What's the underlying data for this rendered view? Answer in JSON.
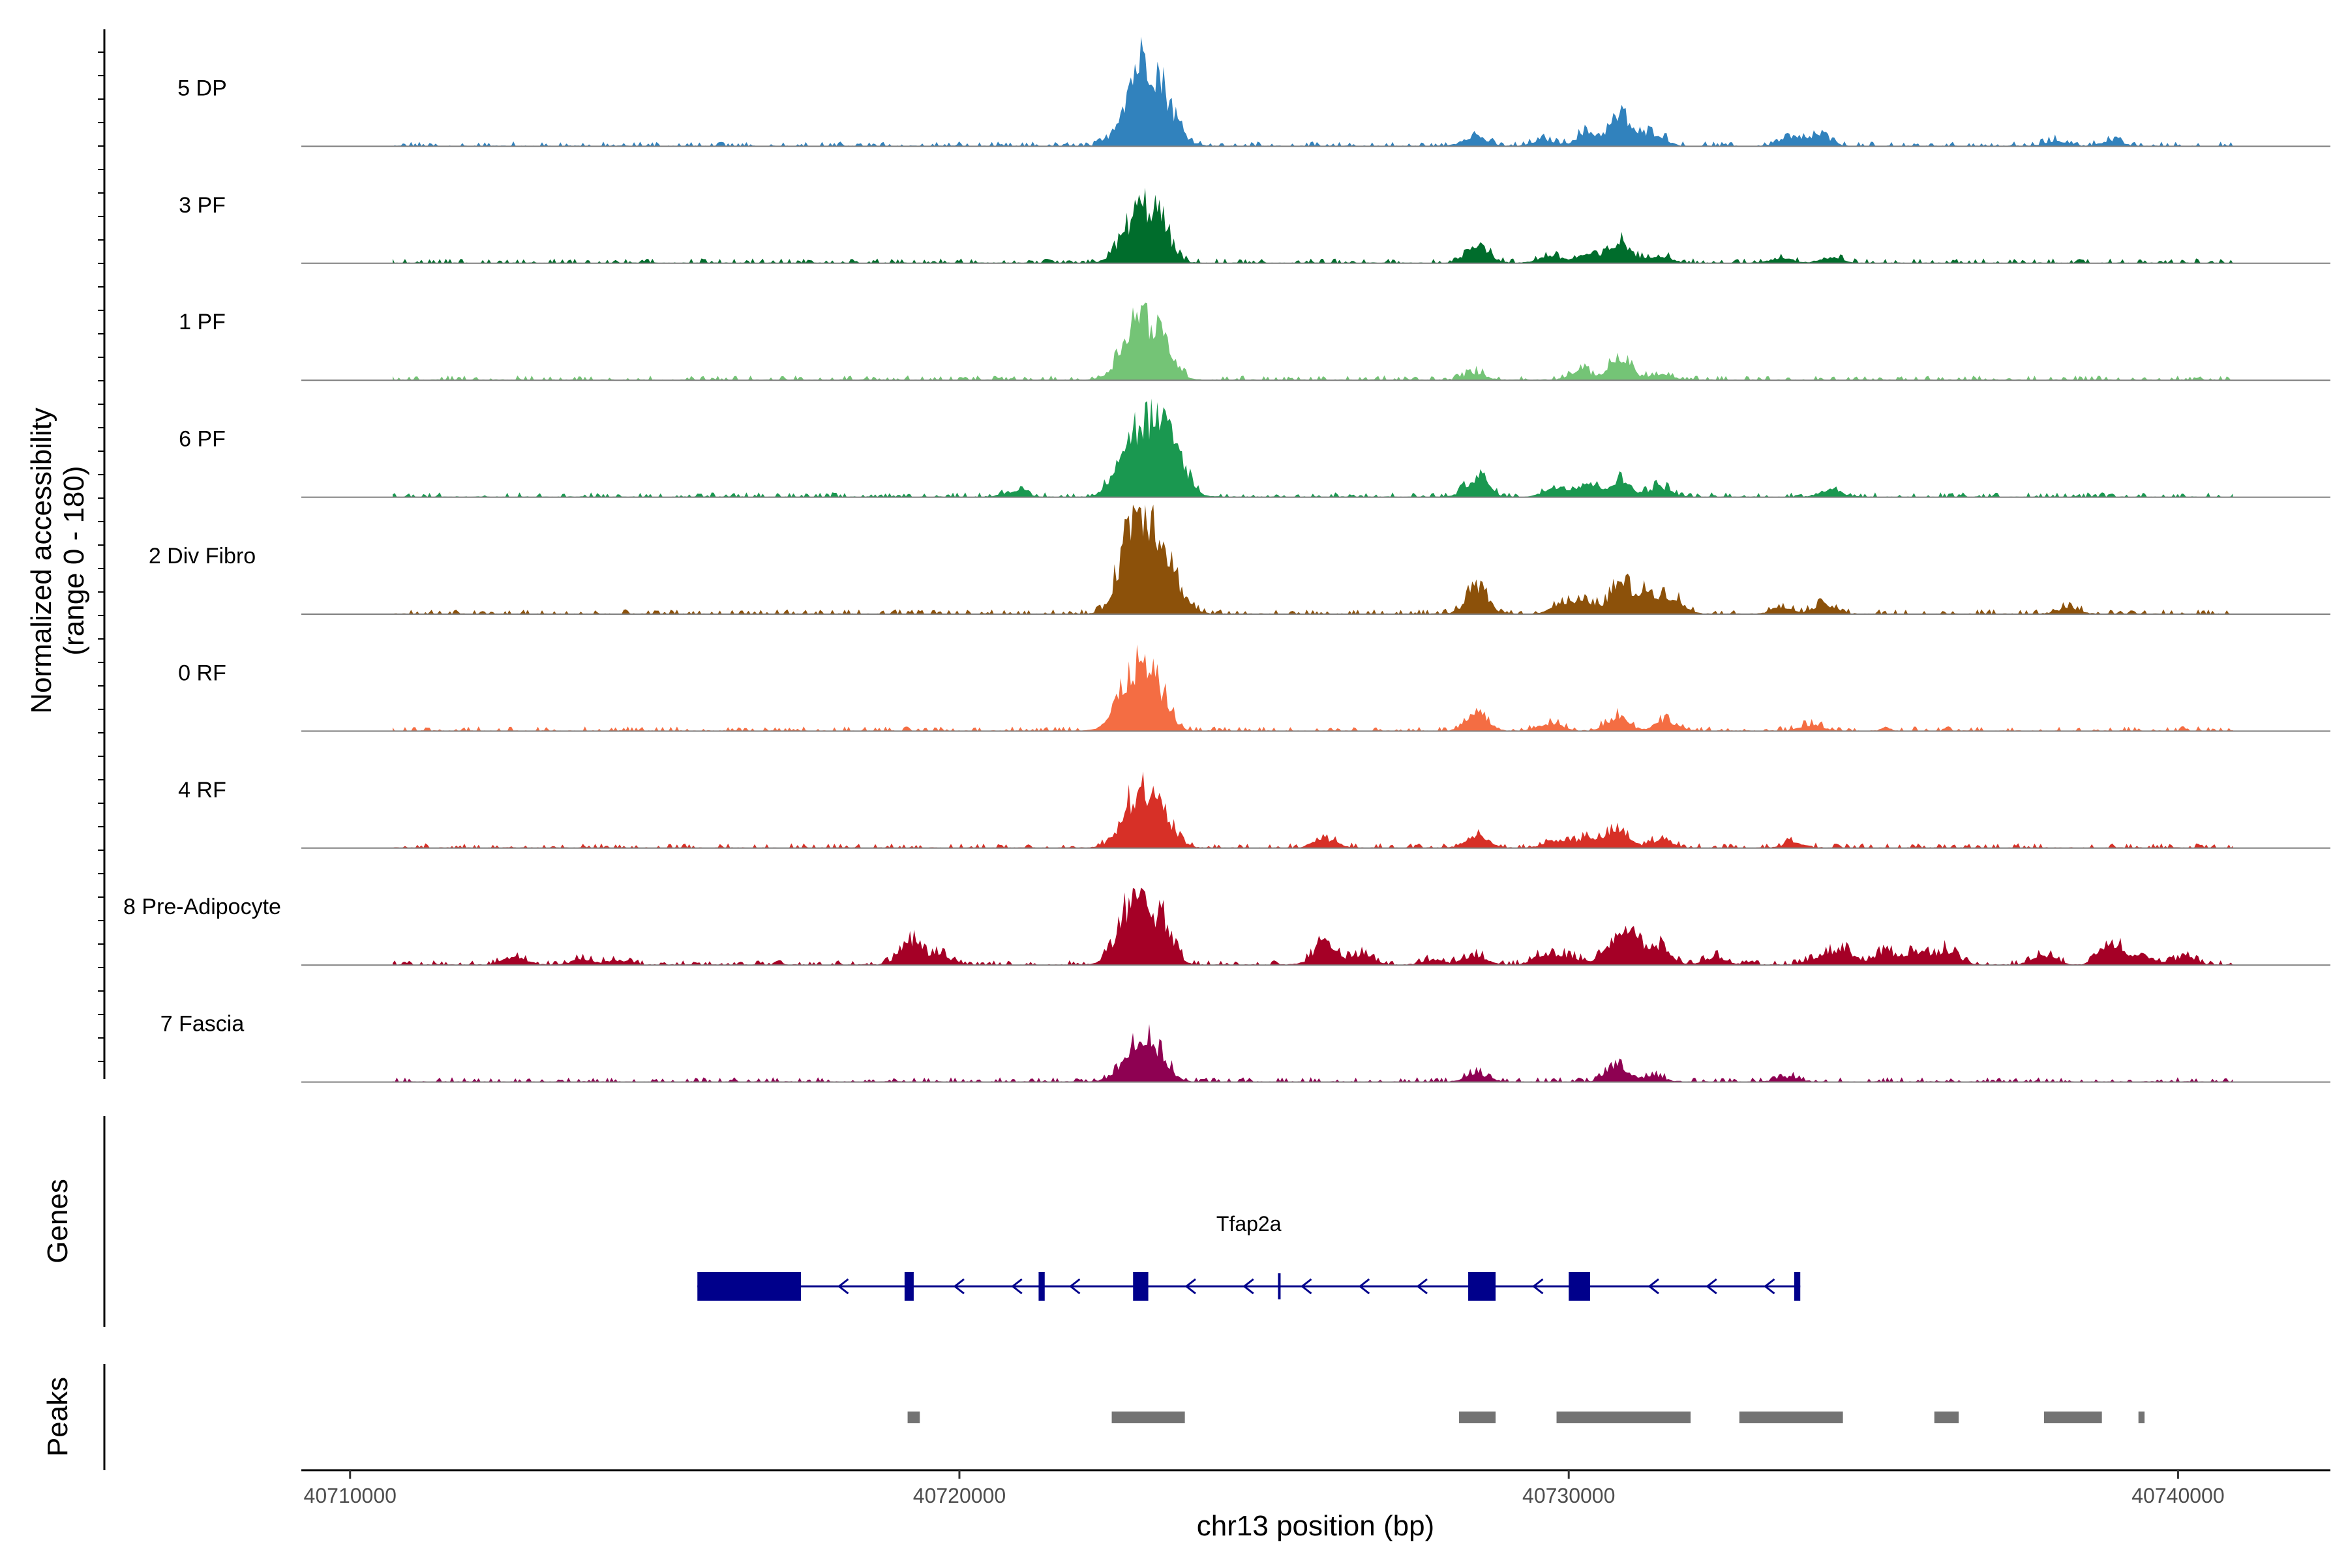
{
  "chart_data": {
    "type": "area",
    "title": "",
    "xlabel": "chr13 position (bp)",
    "ylabel": "Normalized accessibility",
    "ylabel_range": "(range 0 - 180)",
    "xlim": [
      40709200,
      40742500
    ],
    "ylim": [
      0,
      180
    ],
    "x_ticks": [
      40710000,
      40720000,
      40730000,
      40740000
    ],
    "x_tick_labels": [
      "40710000",
      "40720000",
      "40730000",
      "40740000"
    ],
    "data_start": 40710700,
    "data_end": 40740900,
    "tracks": [
      {
        "name": "5 DP",
        "color": "#3182bd",
        "peaks": [
          [
            40722950,
            125
          ],
          [
            40723300,
            75
          ],
          [
            40728450,
            20
          ],
          [
            40729600,
            12
          ],
          [
            40730300,
            25
          ],
          [
            40730850,
            55
          ],
          [
            40731400,
            25
          ],
          [
            40733600,
            14
          ],
          [
            40734100,
            20
          ],
          [
            40738000,
            10
          ],
          [
            40738900,
            10
          ]
        ]
      },
      {
        "name": "3 PF",
        "color": "#006d2c",
        "peaks": [
          [
            40722950,
            90
          ],
          [
            40723300,
            50
          ],
          [
            40728500,
            38
          ],
          [
            40729700,
            14
          ],
          [
            40730300,
            15
          ],
          [
            40730850,
            38
          ],
          [
            40731500,
            15
          ],
          [
            40733500,
            10
          ],
          [
            40734300,
            10
          ]
        ]
      },
      {
        "name": "1 PF",
        "color": "#74c476",
        "peaks": [
          [
            40722950,
            118
          ],
          [
            40723400,
            40
          ],
          [
            40728450,
            14
          ],
          [
            40730200,
            18
          ],
          [
            40730850,
            40
          ],
          [
            40731500,
            10
          ]
        ]
      },
      {
        "name": "6 PF",
        "color": "#1a9850",
        "peaks": [
          [
            40720900,
            12
          ],
          [
            40722650,
            45
          ],
          [
            40722950,
            70
          ],
          [
            40723250,
            90
          ],
          [
            40723600,
            45
          ],
          [
            40728500,
            38
          ],
          [
            40729800,
            20
          ],
          [
            40730300,
            25
          ],
          [
            40730850,
            30
          ],
          [
            40731500,
            20
          ],
          [
            40734300,
            15
          ]
        ]
      },
      {
        "name": "2 Div Fibro",
        "color": "#8c510a",
        "peaks": [
          [
            40722750,
            50
          ],
          [
            40722980,
            152
          ],
          [
            40723350,
            80
          ],
          [
            40728500,
            48
          ],
          [
            40729900,
            20
          ],
          [
            40730300,
            20
          ],
          [
            40730850,
            55
          ],
          [
            40731300,
            38
          ],
          [
            40731700,
            30
          ],
          [
            40733500,
            12
          ],
          [
            40734200,
            18
          ],
          [
            40738200,
            12
          ]
        ]
      },
      {
        "name": "0 RF",
        "color": "#f46d43",
        "peaks": [
          [
            40722900,
            112
          ],
          [
            40723300,
            45
          ],
          [
            40728500,
            30
          ],
          [
            40729700,
            15
          ],
          [
            40730800,
            28
          ],
          [
            40731600,
            20
          ],
          [
            40734000,
            12
          ]
        ]
      },
      {
        "name": "4 RF",
        "color": "#d73027",
        "peaks": [
          [
            40722950,
            105
          ],
          [
            40723400,
            35
          ],
          [
            40726000,
            18
          ],
          [
            40728500,
            24
          ],
          [
            40729800,
            15
          ],
          [
            40730300,
            18
          ],
          [
            40730800,
            32
          ],
          [
            40731500,
            15
          ],
          [
            40733700,
            10
          ]
        ]
      },
      {
        "name": "8 Pre-Adipocyte",
        "color": "#a50026",
        "peaks": [
          [
            40712700,
            15
          ],
          [
            40713800,
            10
          ],
          [
            40714400,
            10
          ],
          [
            40719200,
            45
          ],
          [
            40719700,
            20
          ],
          [
            40722700,
            40
          ],
          [
            40722950,
            90
          ],
          [
            40723350,
            60
          ],
          [
            40726000,
            45
          ],
          [
            40726600,
            20
          ],
          [
            40727800,
            10
          ],
          [
            40728450,
            20
          ],
          [
            40729600,
            20
          ],
          [
            40730000,
            15
          ],
          [
            40730900,
            62
          ],
          [
            40731500,
            30
          ],
          [
            40732400,
            15
          ],
          [
            40734100,
            15
          ],
          [
            40734500,
            30
          ],
          [
            40735200,
            25
          ],
          [
            40735700,
            25
          ],
          [
            40736200,
            30
          ],
          [
            40737800,
            20
          ],
          [
            40738900,
            45
          ],
          [
            40739400,
            20
          ],
          [
            40740100,
            15
          ]
        ]
      },
      {
        "name": "7 Fascia",
        "color": "#8e0152",
        "peaks": [
          [
            40722950,
            72
          ],
          [
            40723300,
            25
          ],
          [
            40728500,
            15
          ],
          [
            40730800,
            28
          ],
          [
            40731400,
            12
          ],
          [
            40733600,
            10
          ]
        ]
      }
    ],
    "gene": {
      "name": "Tfap2a",
      "strand": "-",
      "start": 40715700,
      "end": 40733800,
      "color": "#00008b",
      "exons": [
        [
          40715700,
          40717400
        ],
        [
          40719100,
          40719250
        ],
        [
          40721300,
          40721400
        ],
        [
          40722850,
          40723100
        ],
        [
          40728350,
          40728800
        ],
        [
          40730000,
          40730350
        ],
        [
          40733700,
          40733800
        ]
      ]
    },
    "peaks_track": {
      "label": "Peaks",
      "color": "#737373",
      "regions": [
        [
          40719150,
          40719350
        ],
        [
          40722500,
          40723700
        ],
        [
          40728200,
          40728800
        ],
        [
          40729800,
          40732000
        ],
        [
          40732800,
          40734500
        ],
        [
          40736000,
          40736400
        ],
        [
          40737800,
          40738750
        ],
        [
          40739350,
          40739450
        ]
      ]
    },
    "panel_labels": {
      "genes": "Genes",
      "peaks": "Peaks"
    }
  }
}
